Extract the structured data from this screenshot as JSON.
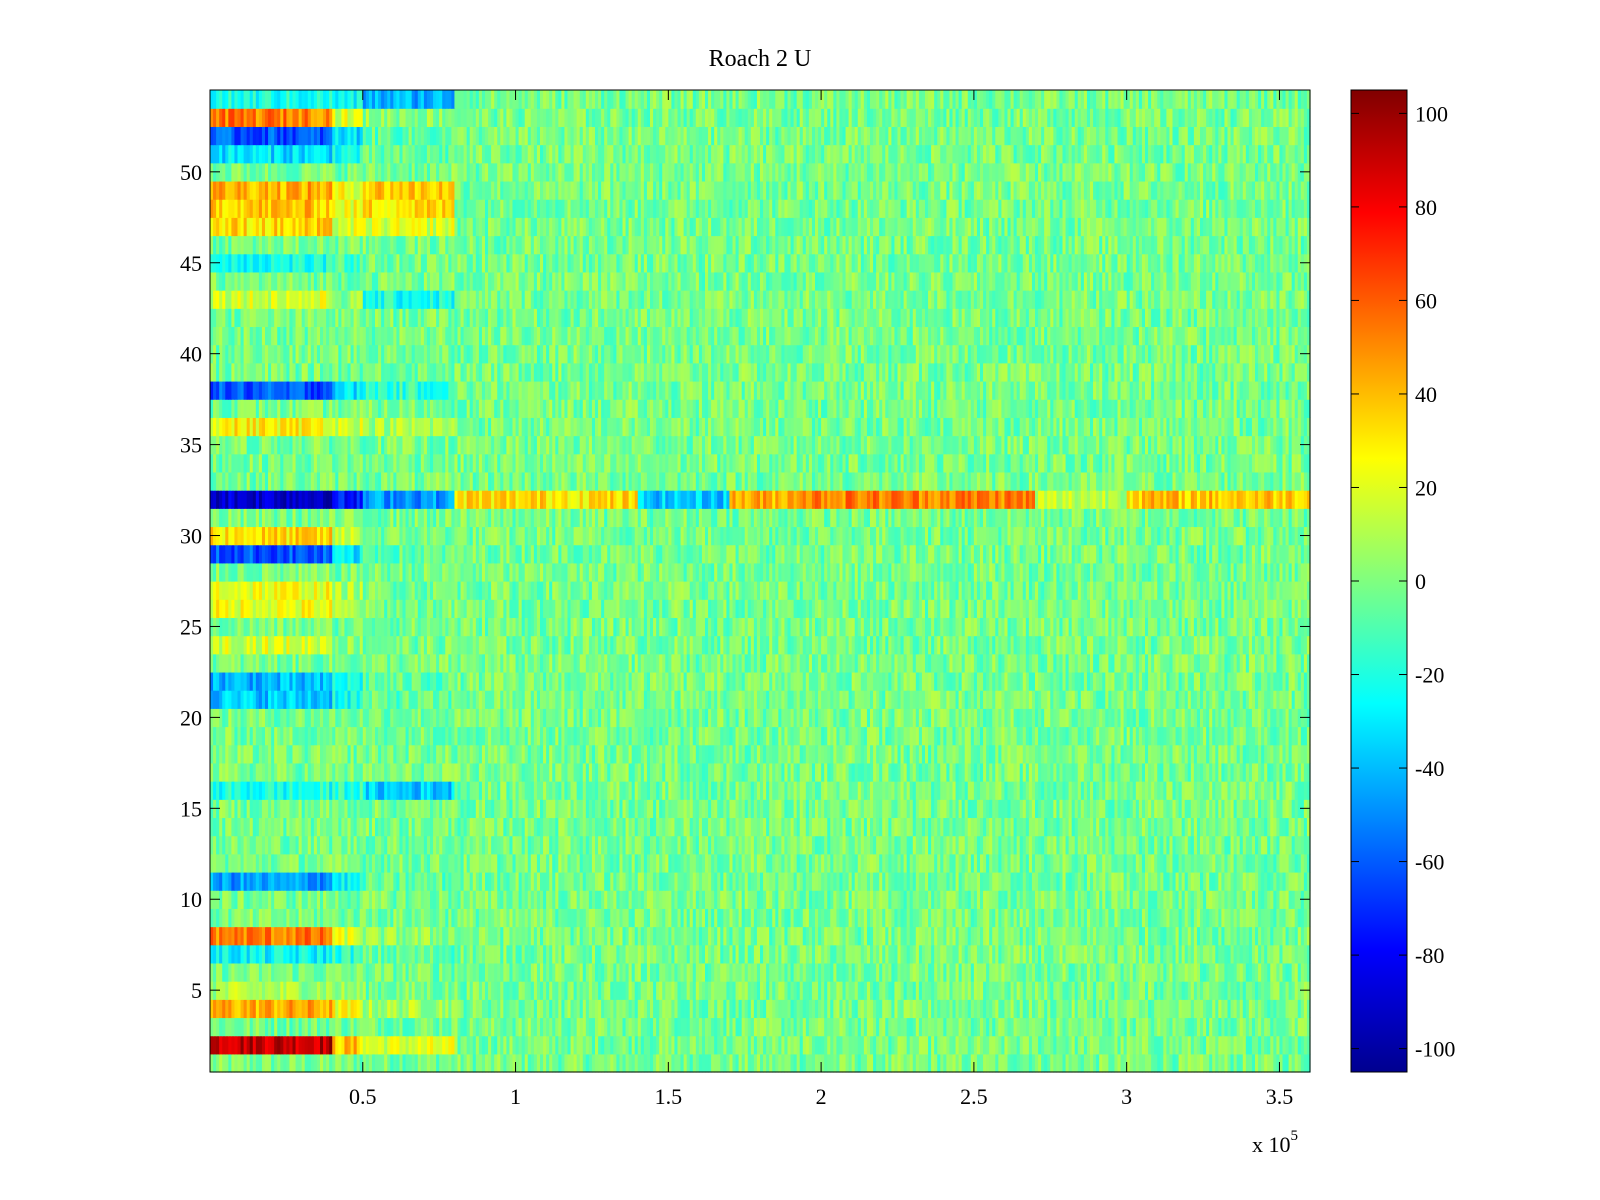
{
  "chart_data": {
    "type": "heatmap",
    "title": "Roach 2 U",
    "xlabel": "",
    "ylabel": "",
    "x_exponent_label": "x 10",
    "x_exponent_power": "5",
    "xlim": [
      0,
      3.6
    ],
    "ylim": [
      0.5,
      54.5
    ],
    "rows": 54,
    "x_ticks": [
      {
        "value": 0.5,
        "label": "0.5"
      },
      {
        "value": 1,
        "label": "1"
      },
      {
        "value": 1.5,
        "label": "1.5"
      },
      {
        "value": 2,
        "label": "2"
      },
      {
        "value": 2.5,
        "label": "2.5"
      },
      {
        "value": 3,
        "label": "3"
      },
      {
        "value": 3.5,
        "label": "3.5"
      }
    ],
    "y_ticks": [
      {
        "value": 5,
        "label": "5"
      },
      {
        "value": 10,
        "label": "10"
      },
      {
        "value": 15,
        "label": "15"
      },
      {
        "value": 20,
        "label": "20"
      },
      {
        "value": 25,
        "label": "25"
      },
      {
        "value": 30,
        "label": "30"
      },
      {
        "value": 35,
        "label": "35"
      },
      {
        "value": 40,
        "label": "40"
      },
      {
        "value": 45,
        "label": "45"
      },
      {
        "value": 50,
        "label": "50"
      }
    ],
    "colorbar": {
      "colormap": "jet",
      "range": [
        -105,
        105
      ],
      "ticks": [
        {
          "value": 100,
          "label": "100"
        },
        {
          "value": 80,
          "label": "80"
        },
        {
          "value": 60,
          "label": "60"
        },
        {
          "value": 40,
          "label": "40"
        },
        {
          "value": 20,
          "label": "20"
        },
        {
          "value": 0,
          "label": "0"
        },
        {
          "value": -20,
          "label": "-20"
        },
        {
          "value": -40,
          "label": "-40"
        },
        {
          "value": -60,
          "label": "-60"
        },
        {
          "value": -80,
          "label": "-80"
        },
        {
          "value": -100,
          "label": "-100"
        }
      ]
    },
    "segments": {
      "x_breaks": [
        0,
        0.4,
        0.5,
        0.8,
        1.4,
        1.7,
        1.9,
        2.7,
        3.0,
        3.6
      ],
      "note_free": true,
      "row_biases": {
        "2": [
          95,
          40,
          20,
          0,
          0,
          0,
          0,
          0,
          0
        ],
        "4": [
          45,
          25,
          10,
          0,
          0,
          0,
          0,
          0,
          0
        ],
        "5": [
          10,
          5,
          0,
          0,
          0,
          0,
          0,
          0,
          0
        ],
        "7": [
          -25,
          -15,
          -5,
          0,
          0,
          0,
          0,
          0,
          0
        ],
        "8": [
          55,
          20,
          5,
          0,
          0,
          0,
          0,
          0,
          0
        ],
        "11": [
          -45,
          -25,
          -5,
          0,
          0,
          0,
          0,
          0,
          0
        ],
        "16": [
          -20,
          -15,
          -35,
          0,
          0,
          0,
          0,
          0,
          0
        ],
        "21": [
          -35,
          -20,
          -5,
          0,
          0,
          0,
          0,
          0,
          0
        ],
        "22": [
          -40,
          -20,
          -5,
          0,
          0,
          0,
          0,
          0,
          0
        ],
        "24": [
          20,
          5,
          0,
          0,
          0,
          0,
          0,
          0,
          0
        ],
        "26": [
          25,
          10,
          0,
          0,
          0,
          0,
          0,
          0,
          0
        ],
        "27": [
          25,
          10,
          0,
          0,
          0,
          0,
          0,
          0,
          0
        ],
        "29": [
          -60,
          -30,
          -5,
          0,
          0,
          0,
          0,
          0,
          0
        ],
        "30": [
          35,
          15,
          0,
          0,
          0,
          0,
          0,
          0,
          0
        ],
        "32": [
          -85,
          -75,
          -45,
          35,
          -35,
          45,
          55,
          15,
          40
        ],
        "36": [
          30,
          20,
          10,
          0,
          0,
          0,
          0,
          0,
          0
        ],
        "38": [
          -60,
          -30,
          -15,
          0,
          0,
          0,
          0,
          0,
          0
        ],
        "43": [
          20,
          5,
          -20,
          0,
          0,
          0,
          0,
          0,
          0
        ],
        "45": [
          -20,
          -10,
          0,
          0,
          0,
          0,
          0,
          0,
          0
        ],
        "47": [
          35,
          20,
          20,
          0,
          0,
          0,
          0,
          0,
          0
        ],
        "48": [
          40,
          25,
          35,
          0,
          0,
          0,
          0,
          0,
          0
        ],
        "49": [
          45,
          25,
          40,
          0,
          0,
          0,
          0,
          0,
          0
        ],
        "51": [
          -30,
          -20,
          -5,
          0,
          0,
          0,
          0,
          0,
          0
        ],
        "52": [
          -60,
          -30,
          -5,
          0,
          0,
          0,
          0,
          0,
          0
        ],
        "53": [
          55,
          20,
          5,
          0,
          0,
          0,
          0,
          0,
          0
        ],
        "54": [
          -20,
          -25,
          -40,
          0,
          0,
          0,
          0,
          0,
          0
        ]
      },
      "background_mean": -2,
      "noise_amplitude": 14
    }
  }
}
